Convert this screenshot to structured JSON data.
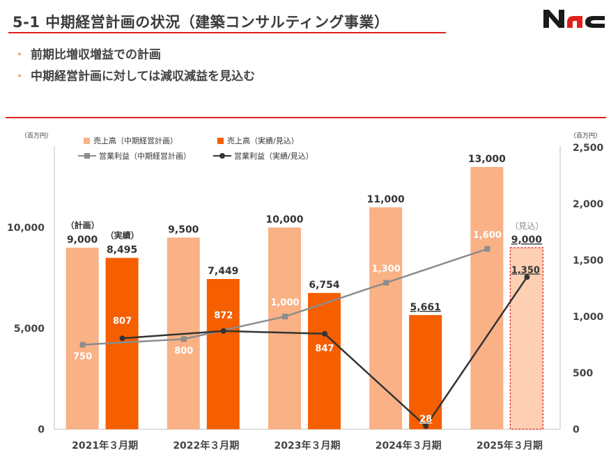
{
  "header": {
    "title": "5-1 中期経営計画の状況（建築コンサルティング事業）",
    "logo_text": "NAC"
  },
  "bullets": [
    "前期比増収増益での計画",
    "中期経営計画に対しては減収減益を見込む"
  ],
  "colors": {
    "accent_red": "#e0201b",
    "plan_bar": "#f9b185",
    "actual_bar": "#f55f00",
    "forecast_bar": "#fdd0b4",
    "plan_line": "#8c8c8c",
    "actual_line": "#333333"
  },
  "chart_data": {
    "type": "bar",
    "categories": [
      "2021年３月期",
      "2022年３月期",
      "2023年３月期",
      "2024年３月期",
      "2025年３月期"
    ],
    "left_axis_unit": "（百万円）",
    "right_axis_unit": "（百万円）",
    "left_ylim": [
      0,
      14000
    ],
    "left_ticks": [
      0,
      5000,
      10000
    ],
    "left_tick_labels": [
      "0",
      "5,000",
      "10,000"
    ],
    "right_ylim": [
      0,
      2500
    ],
    "right_ticks": [
      0,
      500,
      1000,
      1500,
      2000,
      2500
    ],
    "right_tick_labels": [
      "0",
      "500",
      "1,000",
      "1,500",
      "2,000",
      "2,500"
    ],
    "legend": {
      "plan_sales": "売上高（中期経営計画）",
      "actual_sales": "売上高（実績/見込）",
      "plan_profit": "営業利益（中期経営計画）",
      "actual_profit": "営業利益（実績/見込）"
    },
    "series": [
      {
        "name": "売上高（中期経営計画）",
        "kind": "bar",
        "axis": "left",
        "values": [
          9000,
          9500,
          10000,
          11000,
          13000
        ],
        "labels": [
          "9,000",
          "9,500",
          "10,000",
          "11,000",
          "13,000"
        ]
      },
      {
        "name": "売上高（実績/見込）",
        "kind": "bar",
        "axis": "left",
        "values": [
          8495,
          7449,
          6754,
          5661,
          9000
        ],
        "labels": [
          "8,495",
          "7,449",
          "6,754",
          "5,661",
          "9,000"
        ]
      },
      {
        "name": "営業利益（中期経営計画）",
        "kind": "line",
        "axis": "right",
        "values": [
          750,
          800,
          1000,
          1300,
          1600
        ],
        "labels": [
          "750",
          "800",
          "1,000",
          "1,300",
          "1,600"
        ]
      },
      {
        "name": "営業利益（実績/見込）",
        "kind": "line",
        "axis": "right",
        "values": [
          807,
          872,
          847,
          28,
          1350
        ],
        "labels": [
          "807",
          "872",
          "847",
          "28",
          "1,350"
        ]
      }
    ],
    "annotations": {
      "plan_tag": "（計画）",
      "actual_tag": "（実績）",
      "forecast_tag": "（見込）"
    }
  }
}
